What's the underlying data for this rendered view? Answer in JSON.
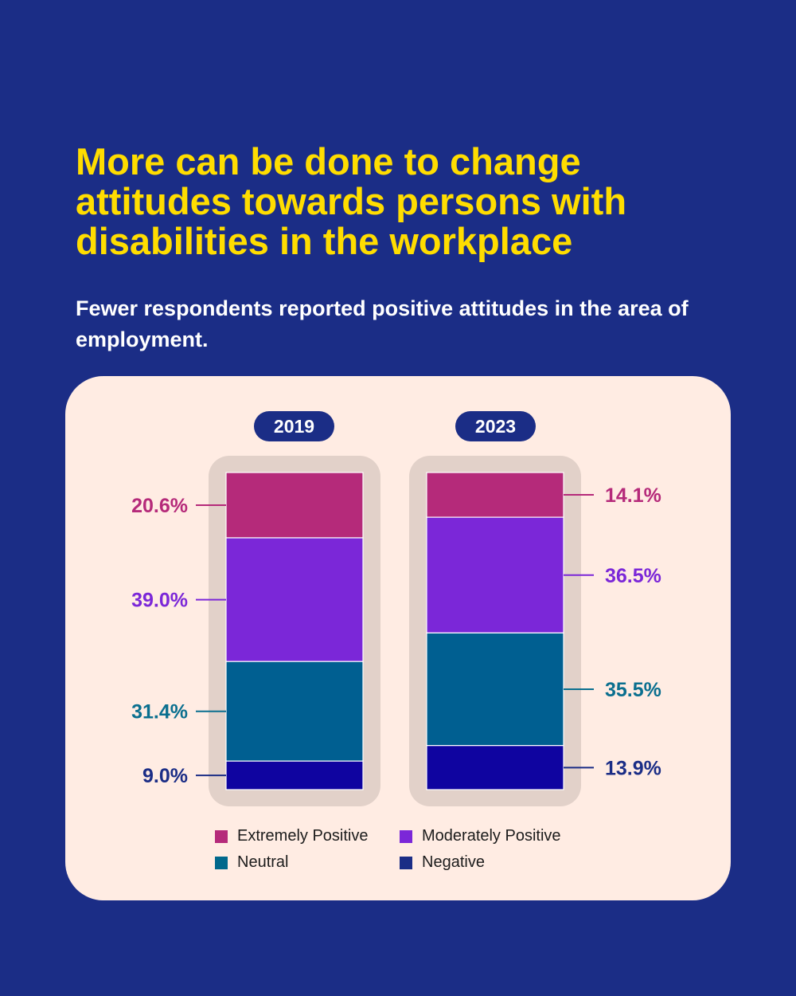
{
  "header": {
    "title": "More can be done to change attitudes towards persons with disabilities in the workplace",
    "subtitle": "Fewer respondents reported positive attitudes in the area of employment."
  },
  "colors": {
    "background": "#1b2d86",
    "card": "#ffece3",
    "bar_frame": "#e2d1c9",
    "title": "#ffdd00"
  },
  "chart_data": {
    "type": "bar",
    "stacked": true,
    "categories": [
      "2019",
      "2023"
    ],
    "ylim": [
      0,
      100
    ],
    "grid": false,
    "legend_position": "bottom",
    "series": [
      {
        "name": "Extremely Positive",
        "color": "#b52a7a",
        "label_color": "#b52a7a",
        "values": [
          20.6,
          14.1
        ],
        "labels": [
          "20.6%",
          "14.1%"
        ]
      },
      {
        "name": "Moderately Positive",
        "color": "#7b27d8",
        "label_color": "#7b27d8",
        "values": [
          39.0,
          36.5
        ],
        "labels": [
          "39.0%",
          "36.5%"
        ]
      },
      {
        "name": "Neutral",
        "color": "#005f91",
        "label_color": "#0a6f8f",
        "values": [
          31.4,
          35.5
        ],
        "labels": [
          "31.4%",
          "35.5%"
        ]
      },
      {
        "name": "Negative",
        "color": "#0f04a0",
        "label_color": "#1b2d86",
        "values": [
          9.0,
          13.9
        ],
        "labels": [
          "9.0%",
          "13.9%"
        ]
      }
    ]
  },
  "legend": {
    "items": [
      {
        "label": "Extremely Positive",
        "color": "#b52a7a"
      },
      {
        "label": "Moderately Positive",
        "color": "#7b27d8"
      },
      {
        "label": "Neutral",
        "color": "#00688c"
      },
      {
        "label": "Negative",
        "color": "#1b2d86"
      }
    ]
  }
}
